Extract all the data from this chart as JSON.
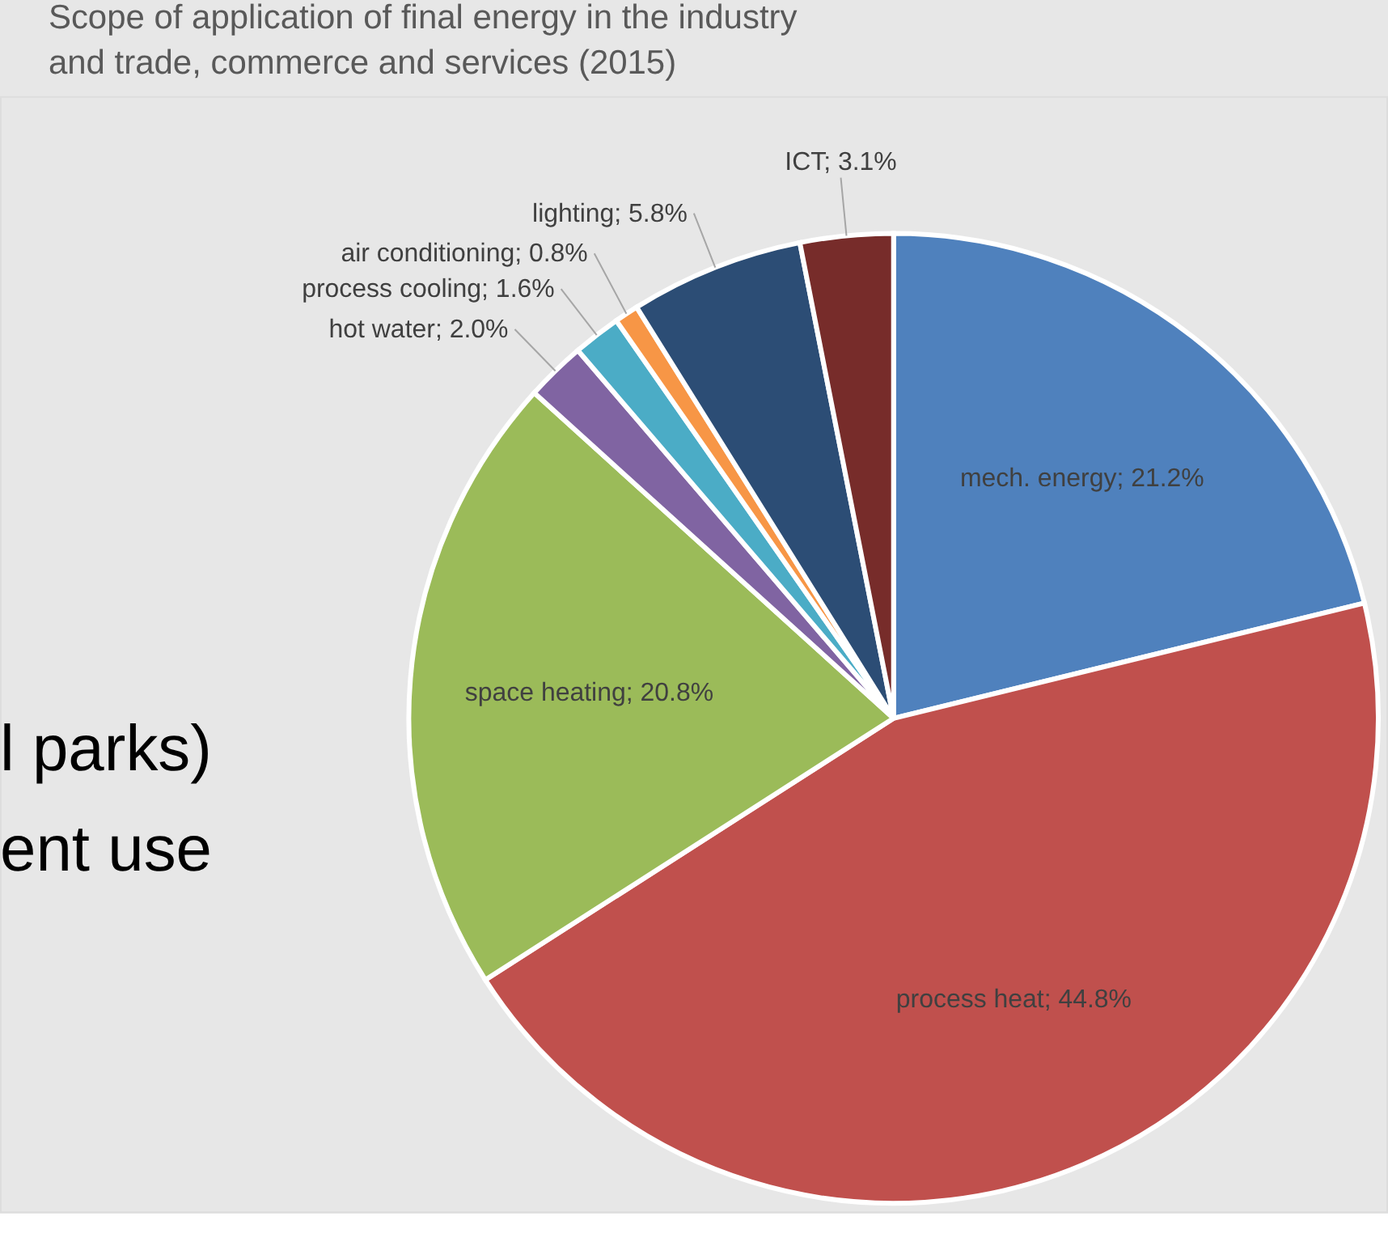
{
  "chart_data": {
    "type": "pie",
    "title": "Scope of application of final energy in the industry and trade, commerce and services (2015)",
    "categories": [
      "mech. energy",
      "process heat",
      "space heating",
      "hot water",
      "process cooling",
      "air conditioning",
      "lighting",
      "ICT"
    ],
    "values": [
      21.2,
      44.8,
      20.8,
      2.0,
      1.6,
      0.8,
      5.8,
      3.1
    ],
    "value_labels": [
      "21.2%",
      "44.8%",
      "20.8%",
      "2.0%",
      "1.6%",
      "0.8%",
      "5.8%",
      "3.1%"
    ],
    "colors": [
      "#4f81bd",
      "#c0504d",
      "#9bbb59",
      "#8064a2",
      "#4bacc6",
      "#f79646",
      "#2c4d75",
      "#772c2a"
    ],
    "legend": false,
    "annotations": [
      "l parks)",
      "ent use"
    ]
  }
}
